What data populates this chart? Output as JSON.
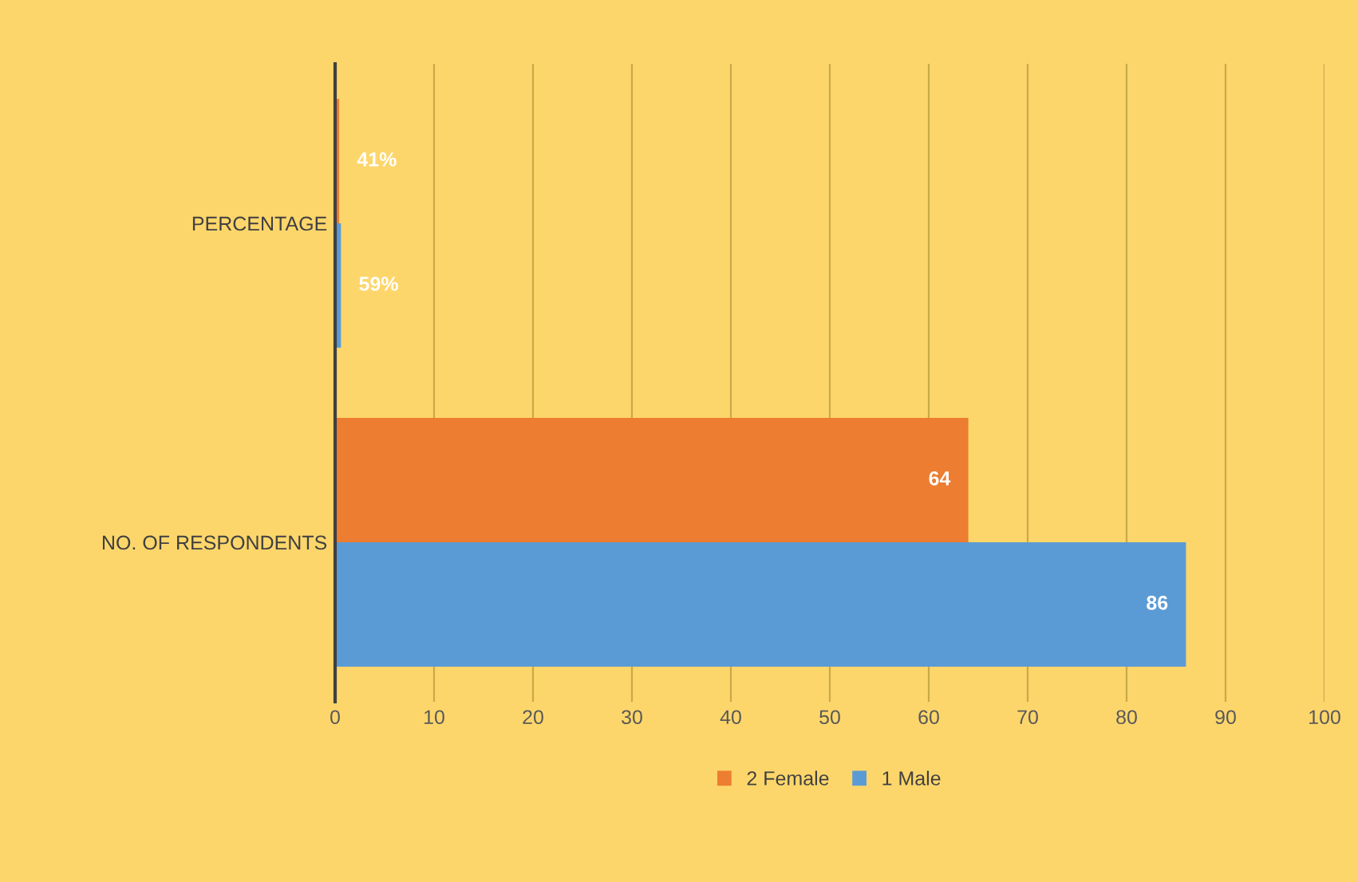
{
  "chart_data": {
    "type": "bar",
    "orientation": "horizontal",
    "categories": [
      "PERCENTAGE",
      "NO. OF RESPONDENTS"
    ],
    "series": [
      {
        "name": "2 Female",
        "color": "#ed7d31",
        "values": [
          0.41,
          64
        ],
        "value_labels": [
          "41%",
          "64"
        ]
      },
      {
        "name": "1 Male",
        "color": "#5b9bd5",
        "values": [
          0.59,
          86
        ],
        "value_labels": [
          "59%",
          "86"
        ]
      }
    ],
    "xlim": [
      0,
      100
    ],
    "xticks": [
      0,
      10,
      20,
      30,
      40,
      50,
      60,
      70,
      80,
      90,
      100
    ],
    "grid": "x",
    "legend": "bottom"
  }
}
